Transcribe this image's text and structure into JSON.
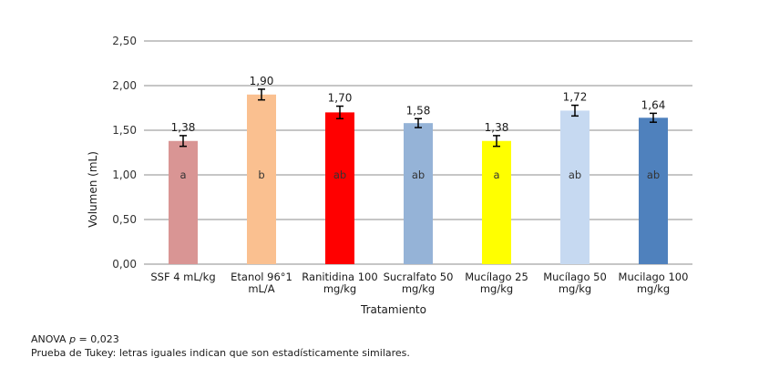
{
  "chart_data": {
    "type": "bar",
    "categories": [
      [
        "SSF 4 mL/kg"
      ],
      [
        "Etanol 96°1",
        "mL/A"
      ],
      [
        "Ranitidina 100",
        "mg/kg"
      ],
      [
        "Sucralfato 50",
        "mg/kg"
      ],
      [
        "Mucílago 25",
        "mg/kg"
      ],
      [
        "Mucílago 50",
        "mg/kg"
      ],
      [
        "Mucilago 100",
        "mg/kg"
      ]
    ],
    "values": [
      1.38,
      1.9,
      1.7,
      1.58,
      1.38,
      1.72,
      1.64
    ],
    "value_labels": [
      "1,38",
      "1,90",
      "1,70",
      "1,58",
      "1,38",
      "1,72",
      "1,64"
    ],
    "error": [
      0.06,
      0.06,
      0.07,
      0.05,
      0.06,
      0.06,
      0.05
    ],
    "group_letters": [
      "a",
      "b",
      "ab",
      "ab",
      "a",
      "ab",
      "ab"
    ],
    "colors": [
      "#d99594",
      "#fac090",
      "#ff0000",
      "#95b3d7",
      "#ffff00",
      "#c6d9f1",
      "#4f81bd"
    ],
    "xlabel": "Tratamiento",
    "ylabel": "Volumen (mL)",
    "ylim": [
      0,
      2.5
    ],
    "yticks": [
      0,
      0.5,
      1.0,
      1.5,
      2.0,
      2.5
    ],
    "ytick_labels": [
      "0,00",
      "0,50",
      "1,00",
      "1,50",
      "2,00",
      "2,50"
    ],
    "grid": true
  },
  "notes": {
    "anova_prefix": "ANOVA ",
    "anova_p": "p",
    "anova_value": " = 0,023",
    "tukey": "Prueba de Tukey: letras iguales indican que son estadísticamente similares."
  }
}
